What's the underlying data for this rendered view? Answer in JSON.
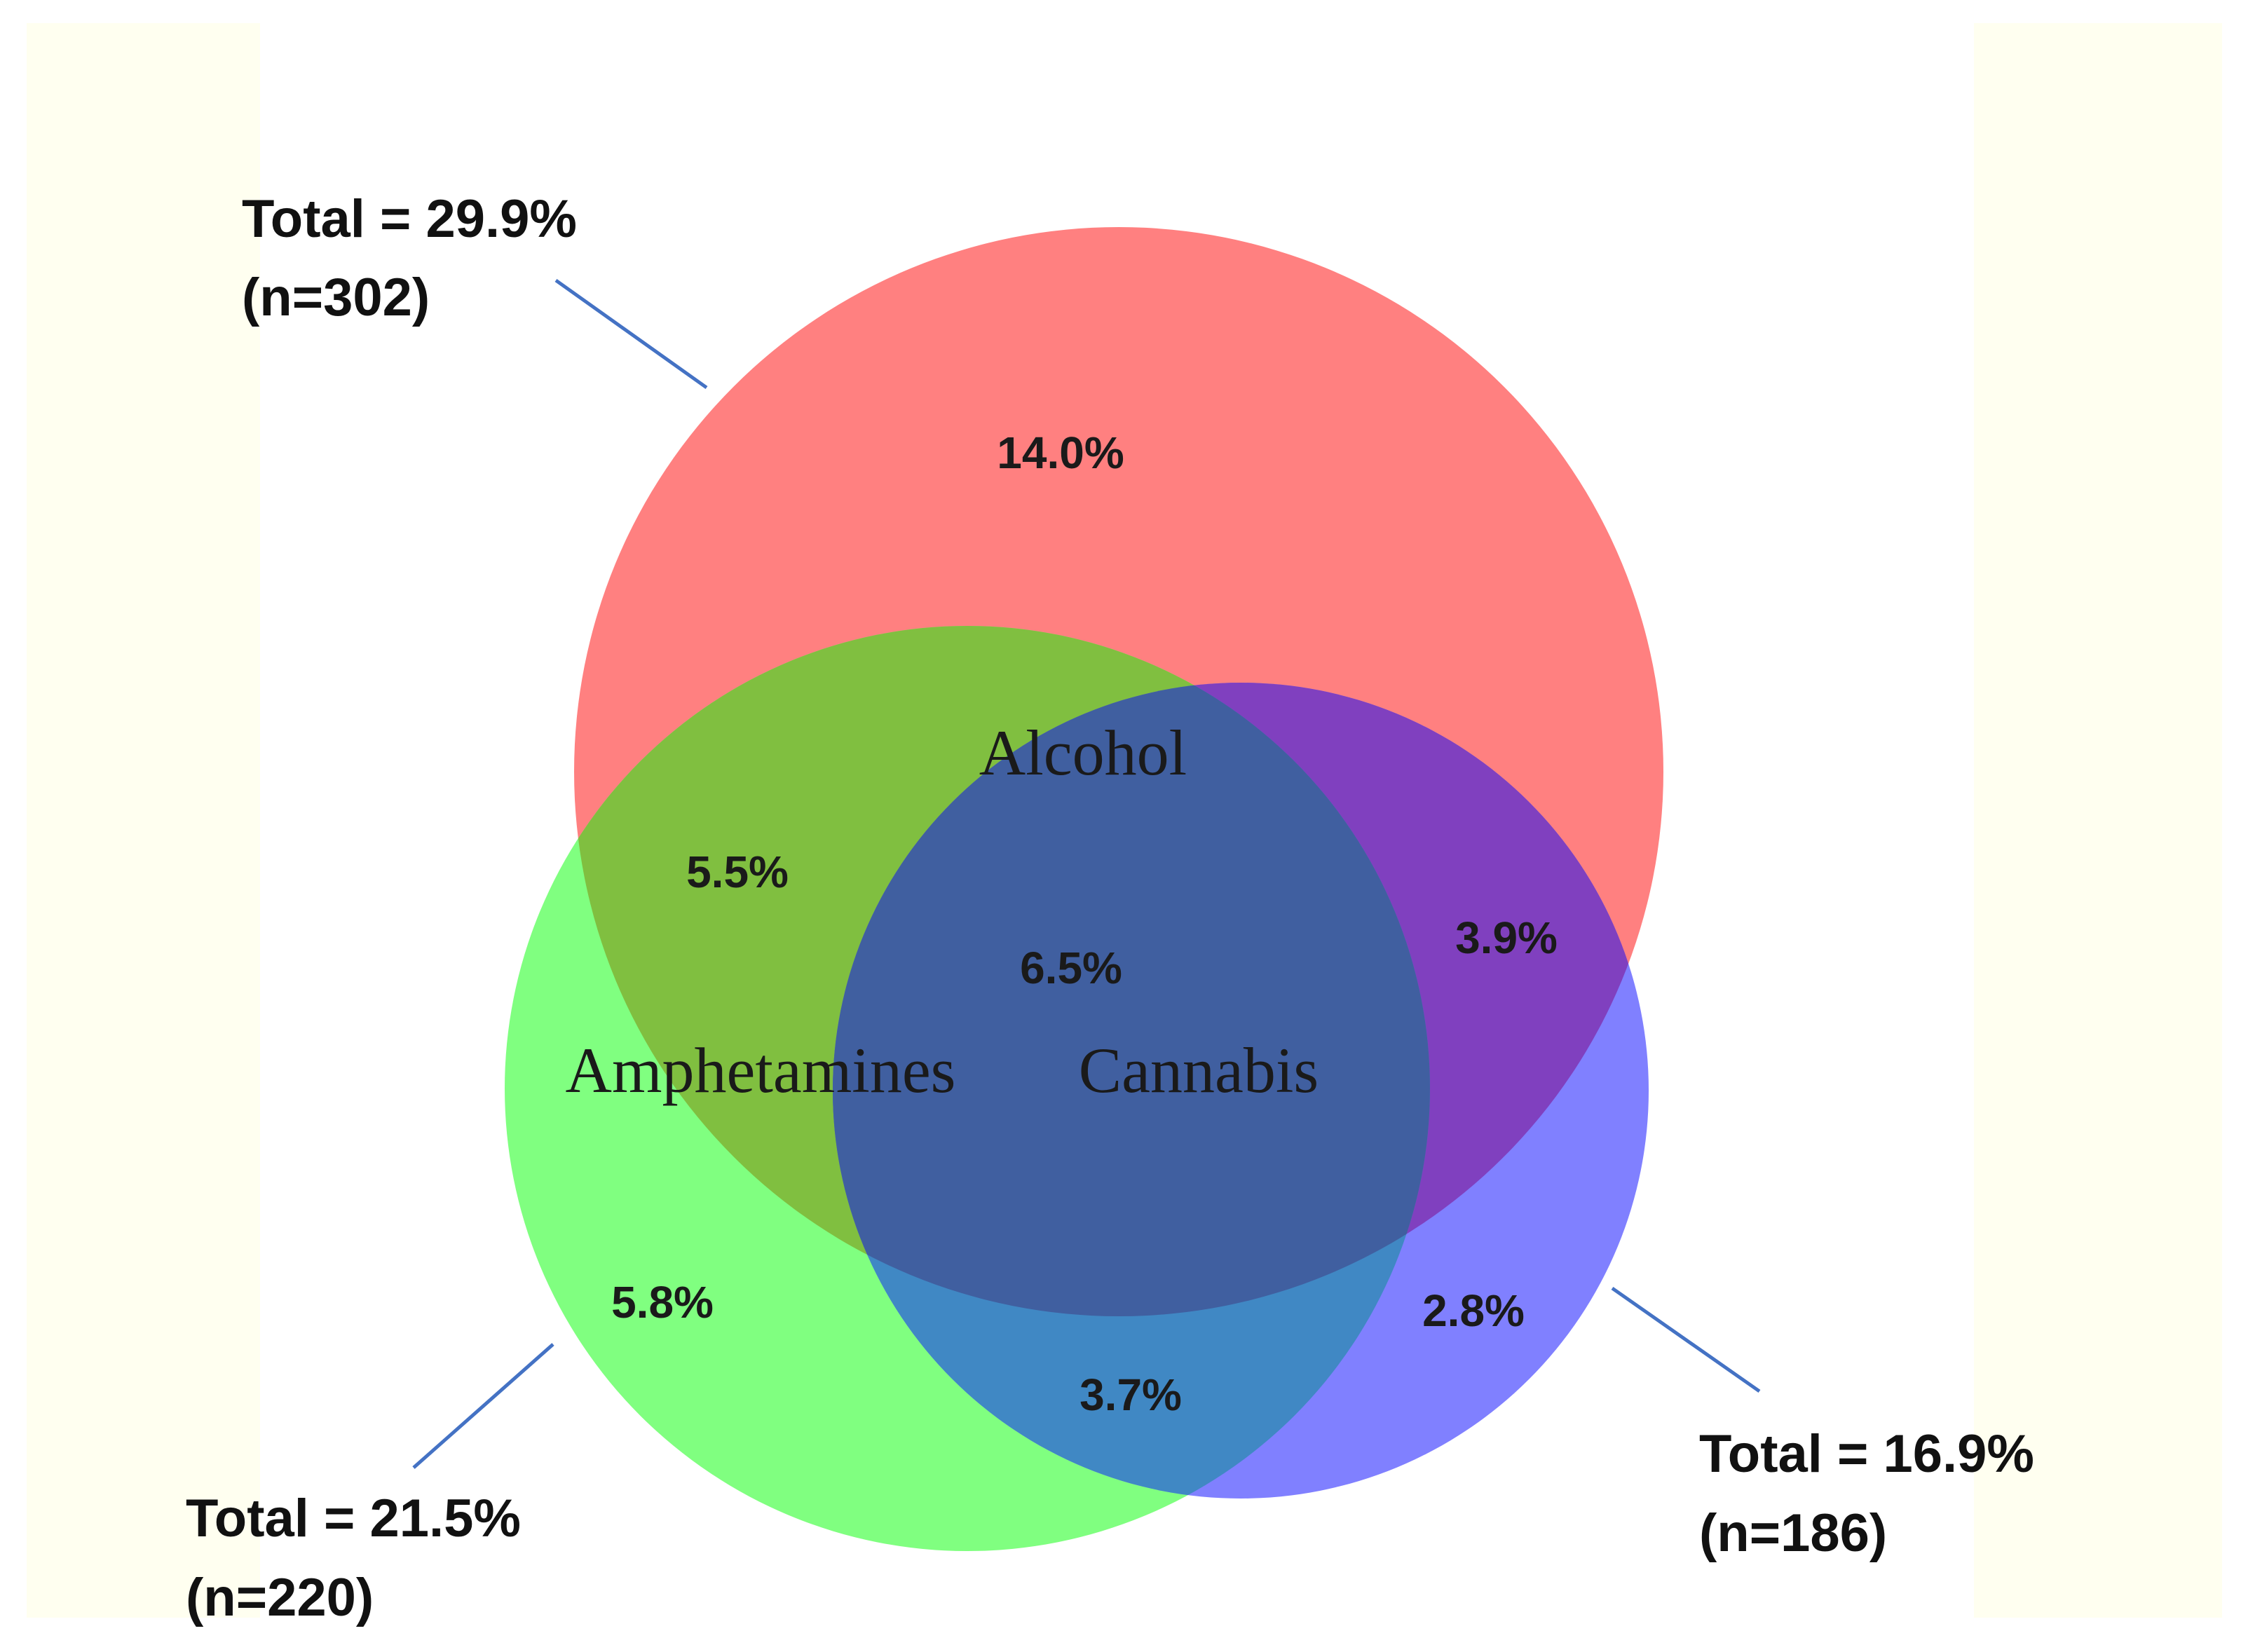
{
  "sets": [
    {
      "id": "alcohol",
      "name": "Alcohol",
      "color": "#ff8080",
      "total_line1": "Total = 29.9%",
      "total_line2": "(n=302)",
      "total_pct": 29.9,
      "n": 302
    },
    {
      "id": "amphetamines",
      "name": "Amphetamines",
      "color": "#80ff80",
      "total_line1": "Total = 21.5%",
      "total_line2": "(n=220)",
      "total_pct": 21.5,
      "n": 220
    },
    {
      "id": "cannabis",
      "name": "Cannabis",
      "color": "#8080ff",
      "total_line1": "Total = 16.9%",
      "total_line2": "(n=186)",
      "total_pct": 16.9,
      "n": 186
    }
  ],
  "overlap_colors": {
    "alcohol_amphetamines": "#80bf40",
    "alcohol_cannabis": "#8040bf",
    "amphetamines_cannabis": "#4088c4",
    "all_three": "#405fa0"
  },
  "regions": {
    "alcohol_only": "14.0%",
    "alcohol_amphetamines": "5.5%",
    "all_three": "6.5%",
    "alcohol_cannabis": "3.9%",
    "amphetamines_only": "5.8%",
    "amphetamines_cannabis": "3.7%",
    "cannabis_only": "2.8%"
  },
  "side_band_color": "#fffff0"
}
